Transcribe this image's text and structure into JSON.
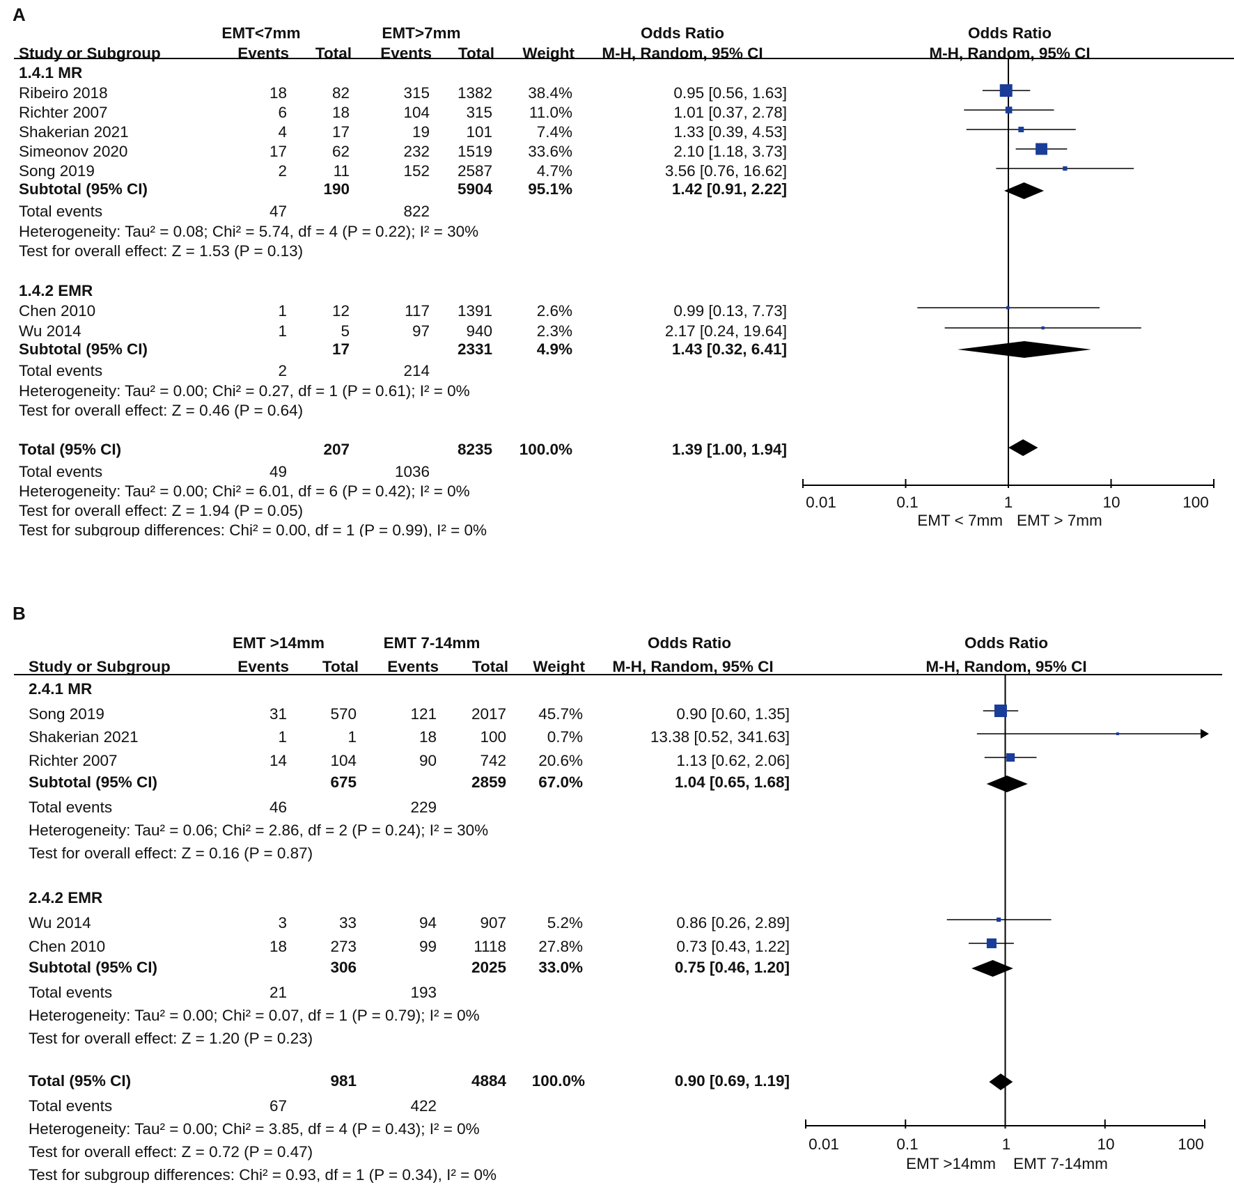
{
  "chart_data": [
    {
      "type": "forest",
      "panel_label": "A",
      "group1_label": "EMT<7mm",
      "group2_label": "EMT>7mm",
      "columns": {
        "study": "Study or Subgroup",
        "events": "Events",
        "total": "Total",
        "weight": "Weight",
        "or_label": "Odds Ratio",
        "or_method": "M-H, Random, 95% CI"
      },
      "x_axis": {
        "scale": "log",
        "ticks": [
          0.01,
          0.1,
          1,
          10,
          100
        ],
        "tick_labels": [
          "0.01",
          "0.1",
          "1",
          "10",
          "100"
        ],
        "favours_left": "EMT < 7mm",
        "favours_right": "EMT > 7mm"
      },
      "subgroups": [
        {
          "name": "1.4.1 MR",
          "studies": [
            {
              "study": "Ribeiro 2018",
              "e1": "18",
              "n1": "82",
              "e2": "315",
              "n2": "1382",
              "weight": "38.4%",
              "ci_text": "0.95 [0.56, 1.63]",
              "or": 0.95,
              "lo": 0.56,
              "hi": 1.63,
              "w": 38.4
            },
            {
              "study": "Richter 2007",
              "e1": "6",
              "n1": "18",
              "e2": "104",
              "n2": "315",
              "weight": "11.0%",
              "ci_text": "1.01 [0.37, 2.78]",
              "or": 1.01,
              "lo": 0.37,
              "hi": 2.78,
              "w": 11.0
            },
            {
              "study": "Shakerian 2021",
              "e1": "4",
              "n1": "17",
              "e2": "19",
              "n2": "101",
              "weight": "7.4%",
              "ci_text": "1.33 [0.39, 4.53]",
              "or": 1.33,
              "lo": 0.39,
              "hi": 4.53,
              "w": 7.4
            },
            {
              "study": "Simeonov 2020",
              "e1": "17",
              "n1": "62",
              "e2": "232",
              "n2": "1519",
              "weight": "33.6%",
              "ci_text": "2.10 [1.18, 3.73]",
              "or": 2.1,
              "lo": 1.18,
              "hi": 3.73,
              "w": 33.6
            },
            {
              "study": "Song 2019",
              "e1": "2",
              "n1": "11",
              "e2": "152",
              "n2": "2587",
              "weight": "4.7%",
              "ci_text": "3.56 [0.76, 16.62]",
              "or": 3.56,
              "lo": 0.76,
              "hi": 16.62,
              "w": 4.7
            }
          ],
          "subtotal": {
            "label": "Subtotal (95% CI)",
            "n1": "190",
            "n2": "5904",
            "weight": "95.1%",
            "ci_text": "1.42 [0.91, 2.22]",
            "or": 1.42,
            "lo": 0.91,
            "hi": 2.22
          },
          "total_events": {
            "label": "Total events",
            "e1": "47",
            "e2": "822"
          },
          "heterogeneity": "Heterogeneity: Tau² = 0.08; Chi² = 5.74, df = 4 (P = 0.22); I² = 30%",
          "overall_effect": "Test for overall effect: Z = 1.53 (P = 0.13)"
        },
        {
          "name": "1.4.2 EMR",
          "studies": [
            {
              "study": "Chen 2010",
              "e1": "1",
              "n1": "12",
              "e2": "117",
              "n2": "1391",
              "weight": "2.6%",
              "ci_text": "0.99 [0.13, 7.73]",
              "or": 0.99,
              "lo": 0.13,
              "hi": 7.73,
              "w": 2.6
            },
            {
              "study": "Wu 2014",
              "e1": "1",
              "n1": "5",
              "e2": "97",
              "n2": "940",
              "weight": "2.3%",
              "ci_text": "2.17 [0.24, 19.64]",
              "or": 2.17,
              "lo": 0.24,
              "hi": 19.64,
              "w": 2.3
            }
          ],
          "subtotal": {
            "label": "Subtotal (95% CI)",
            "n1": "17",
            "n2": "2331",
            "weight": "4.9%",
            "ci_text": "1.43 [0.32, 6.41]",
            "or": 1.43,
            "lo": 0.32,
            "hi": 6.41
          },
          "total_events": {
            "label": "Total events",
            "e1": "2",
            "e2": "214"
          },
          "heterogeneity": "Heterogeneity: Tau² = 0.00; Chi² = 0.27, df = 1 (P = 0.61); I² = 0%",
          "overall_effect": "Test for overall effect: Z = 0.46 (P = 0.64)"
        }
      ],
      "total": {
        "label": "Total (95% CI)",
        "n1": "207",
        "n2": "8235",
        "weight": "100.0%",
        "ci_text": "1.39 [1.00, 1.94]",
        "or": 1.39,
        "lo": 1.0,
        "hi": 1.94
      },
      "total_events": {
        "label": "Total events",
        "e1": "49",
        "e2": "1036"
      },
      "heterogeneity": "Heterogeneity: Tau² = 0.00; Chi² = 6.01, df = 6 (P = 0.42); I² = 0%",
      "overall_effect": "Test for overall effect: Z = 1.94 (P = 0.05)",
      "subgroup_diff": "Test for subgroup differences: Chi² = 0.00, df = 1 (P = 0.99), I² = 0%"
    },
    {
      "type": "forest",
      "panel_label": "B",
      "group1_label": "EMT >14mm",
      "group2_label": "EMT 7-14mm",
      "columns": {
        "study": "Study or Subgroup",
        "events": "Events",
        "total": "Total",
        "weight": "Weight",
        "or_label": "Odds Ratio",
        "or_method": "M-H, Random, 95% CI"
      },
      "x_axis": {
        "scale": "log",
        "ticks": [
          0.01,
          0.1,
          1,
          10,
          100
        ],
        "tick_labels": [
          "0.01",
          "0.1",
          "1",
          "10",
          "100"
        ],
        "favours_left": "EMT >14mm",
        "favours_right": "EMT 7-14mm"
      },
      "subgroups": [
        {
          "name": "2.4.1 MR",
          "studies": [
            {
              "study": "Song 2019",
              "e1": "31",
              "n1": "570",
              "e2": "121",
              "n2": "2017",
              "weight": "45.7%",
              "ci_text": "0.90 [0.60, 1.35]",
              "or": 0.9,
              "lo": 0.6,
              "hi": 1.35,
              "w": 45.7
            },
            {
              "study": "Shakerian 2021",
              "e1": "1",
              "n1": "1",
              "e2": "18",
              "n2": "100",
              "weight": "0.7%",
              "ci_text": "13.38 [0.52, 341.63]",
              "or": 13.38,
              "lo": 0.52,
              "hi": 341.63,
              "w": 0.7
            },
            {
              "study": "Richter 2007",
              "e1": "14",
              "n1": "104",
              "e2": "90",
              "n2": "742",
              "weight": "20.6%",
              "ci_text": "1.13 [0.62, 2.06]",
              "or": 1.13,
              "lo": 0.62,
              "hi": 2.06,
              "w": 20.6
            }
          ],
          "subtotal": {
            "label": "Subtotal (95% CI)",
            "n1": "675",
            "n2": "2859",
            "weight": "67.0%",
            "ci_text": "1.04 [0.65, 1.68]",
            "or": 1.04,
            "lo": 0.65,
            "hi": 1.68
          },
          "total_events": {
            "label": "Total events",
            "e1": "46",
            "e2": "229"
          },
          "heterogeneity": "Heterogeneity: Tau² = 0.06; Chi² = 2.86, df = 2 (P = 0.24); I² = 30%",
          "overall_effect": "Test for overall effect: Z = 0.16 (P = 0.87)"
        },
        {
          "name": "2.4.2 EMR",
          "studies": [
            {
              "study": "Wu 2014",
              "e1": "3",
              "n1": "33",
              "e2": "94",
              "n2": "907",
              "weight": "5.2%",
              "ci_text": "0.86 [0.26, 2.89]",
              "or": 0.86,
              "lo": 0.26,
              "hi": 2.89,
              "w": 5.2
            },
            {
              "study": "Chen 2010",
              "e1": "18",
              "n1": "273",
              "e2": "99",
              "n2": "1118",
              "weight": "27.8%",
              "ci_text": "0.73 [0.43, 1.22]",
              "or": 0.73,
              "lo": 0.43,
              "hi": 1.22,
              "w": 27.8
            }
          ],
          "subtotal": {
            "label": "Subtotal (95% CI)",
            "n1": "306",
            "n2": "2025",
            "weight": "33.0%",
            "ci_text": "0.75 [0.46, 1.20]",
            "or": 0.75,
            "lo": 0.46,
            "hi": 1.2
          },
          "total_events": {
            "label": "Total events",
            "e1": "21",
            "e2": "193"
          },
          "heterogeneity": "Heterogeneity: Tau² = 0.00; Chi² = 0.07, df = 1 (P = 0.79); I² = 0%",
          "overall_effect": "Test for overall effect: Z = 1.20 (P = 0.23)"
        }
      ],
      "total": {
        "label": "Total (95% CI)",
        "n1": "981",
        "n2": "4884",
        "weight": "100.0%",
        "ci_text": "0.90 [0.69, 1.19]",
        "or": 0.9,
        "lo": 0.69,
        "hi": 1.19
      },
      "total_events": {
        "label": "Total events",
        "e1": "67",
        "e2": "422"
      },
      "heterogeneity": "Heterogeneity: Tau² = 0.00; Chi² = 3.85, df = 4 (P = 0.43); I² = 0%",
      "overall_effect": "Test for overall effect: Z = 0.72 (P = 0.47)",
      "subgroup_diff": "Test for subgroup differences: Chi² = 0.93, df = 1 (P = 0.34), I² = 0%"
    }
  ],
  "colors": {
    "study_marker": "#1a3d99",
    "diamond": "#000000",
    "line": "#000000"
  }
}
